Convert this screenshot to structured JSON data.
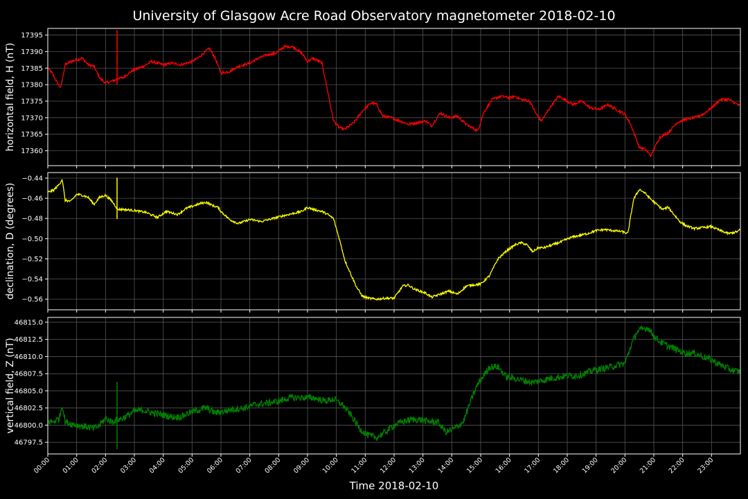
{
  "chart_data": {
    "type": "line",
    "title": "University of Glasgow Acre Road Observatory magnetometer 2018-02-10",
    "xlabel": "Time 2018-02-10",
    "x_tick_labels": [
      "00:00",
      "01:00",
      "02:00",
      "03:00",
      "04:00",
      "05:00",
      "06:00",
      "07:00",
      "08:00",
      "09:00",
      "10:00",
      "11:00",
      "12:00",
      "13:00",
      "14:00",
      "15:00",
      "16:00",
      "17:00",
      "18:00",
      "19:00",
      "20:00",
      "21:00",
      "22:00",
      "23:00"
    ],
    "xlim": [
      0,
      24
    ],
    "grid": true,
    "colors": {
      "background": "#000000",
      "frame": "#ffffff",
      "grid": "#555555"
    },
    "panels": [
      {
        "ylabel": "horizontal field, H (nT)",
        "color": "#ff0000",
        "ylim": [
          17355.5,
          17397
        ],
        "yticks": [
          17360,
          17365,
          17370,
          17375,
          17380,
          17385,
          17390,
          17395
        ],
        "ytick_labels": [
          "17360",
          "17365",
          "17370",
          "17375",
          "17380",
          "17385",
          "17390",
          "17395"
        ],
        "noise": 0.4,
        "series": {
          "name": "H",
          "x": [
            0,
            0.15,
            0.3,
            0.45,
            0.6,
            0.8,
            1,
            1.2,
            1.4,
            1.6,
            1.8,
            2,
            2.2,
            2.38,
            2.4,
            2.6,
            2.8,
            3,
            3.3,
            3.6,
            4,
            4.3,
            4.6,
            5,
            5.2,
            5.4,
            5.6,
            5.8,
            6,
            6.3,
            6.6,
            7,
            7.3,
            7.6,
            7.9,
            8.2,
            8.5,
            8.8,
            9,
            9.2,
            9.5,
            9.7,
            9.9,
            10.1,
            10.3,
            10.6,
            10.9,
            11.2,
            11.4,
            11.6,
            11.9,
            12.2,
            12.5,
            12.8,
            13.1,
            13.3,
            13.6,
            13.9,
            14.2,
            14.5,
            14.7,
            14.9,
            15.1,
            15.4,
            15.7,
            16,
            16.2,
            16.4,
            16.7,
            16.9,
            17.1,
            17.4,
            17.7,
            18,
            18.2,
            18.5,
            18.8,
            19.1,
            19.4,
            19.7,
            20,
            20.2,
            20.5,
            20.7,
            20.9,
            21.2,
            21.5,
            21.8,
            22.1,
            22.4,
            22.7,
            23,
            23.3,
            23.6,
            23.9,
            24
          ],
          "y": [
            17385,
            17383.5,
            17381,
            17379,
            17386,
            17387,
            17387.5,
            17388,
            17386,
            17385.5,
            17382,
            17380.5,
            17381,
            17381.5,
            17382,
            17382,
            17383.5,
            17384.5,
            17385.5,
            17387,
            17386,
            17386.5,
            17386,
            17387,
            17388,
            17389.5,
            17391,
            17388,
            17383.5,
            17384,
            17385.5,
            17386.5,
            17388,
            17389,
            17389.5,
            17391.5,
            17391.5,
            17389.5,
            17387,
            17388,
            17386.5,
            17378,
            17369,
            17367,
            17366.5,
            17368.5,
            17372,
            17374.5,
            17374,
            17370.5,
            17370,
            17369,
            17368,
            17368.5,
            17369,
            17367.5,
            17371.5,
            17370,
            17370.5,
            17368,
            17367,
            17366,
            17371.5,
            17375.5,
            17376.5,
            17376,
            17376.5,
            17375.5,
            17375,
            17371.5,
            17369,
            17373,
            17376.5,
            17375,
            17374,
            17375,
            17373,
            17372.5,
            17374,
            17372.5,
            17371,
            17368,
            17361,
            17360.5,
            17358.5,
            17364,
            17365.5,
            17368.5,
            17369.5,
            17370,
            17371,
            17373,
            17375.5,
            17375.5,
            17374,
            17373.5
          ]
        },
        "spike": {
          "x": 2.4,
          "y_min": 17380,
          "y_max": 17396.5
        }
      },
      {
        "ylabel": "declination, D (degrees)",
        "color": "#ffff00",
        "ylim": [
          -0.5705,
          -0.4345
        ],
        "yticks": [
          -0.56,
          -0.54,
          -0.52,
          -0.5,
          -0.48,
          -0.46,
          -0.44
        ],
        "ytick_labels": [
          "−0.56",
          "−0.54",
          "−0.52",
          "−0.50",
          "−0.48",
          "−0.46",
          "−0.44"
        ],
        "noise": 0.0011,
        "series": {
          "name": "D",
          "x": [
            0,
            0.2,
            0.4,
            0.5,
            0.6,
            0.8,
            1,
            1.2,
            1.4,
            1.6,
            1.8,
            2,
            2.2,
            2.38,
            2.4,
            2.6,
            3,
            3.4,
            3.8,
            4.1,
            4.5,
            4.8,
            5,
            5.3,
            5.5,
            5.7,
            5.9,
            6,
            6.3,
            6.6,
            7,
            7.4,
            7.8,
            8.2,
            8.5,
            8.8,
            9,
            9.2,
            9.5,
            9.7,
            9.9,
            10.1,
            10.3,
            10.5,
            10.7,
            10.9,
            11.1,
            11.4,
            11.7,
            12,
            12.3,
            12.5,
            12.7,
            12.9,
            13.1,
            13.3,
            13.6,
            13.9,
            14.2,
            14.5,
            14.7,
            15,
            15.3,
            15.6,
            15.9,
            16.2,
            16.4,
            16.6,
            16.8,
            17,
            17.2,
            17.5,
            17.8,
            18.1,
            18.4,
            18.7,
            19,
            19.3,
            19.6,
            19.9,
            20.1,
            20.3,
            20.5,
            20.7,
            20.9,
            21.1,
            21.3,
            21.5,
            21.7,
            21.9,
            22.1,
            22.4,
            22.7,
            23,
            23.3,
            23.6,
            23.9,
            24
          ],
          "y": [
            -0.454,
            -0.452,
            -0.446,
            -0.441,
            -0.462,
            -0.463,
            -0.456,
            -0.457,
            -0.459,
            -0.466,
            -0.459,
            -0.457,
            -0.462,
            -0.469,
            -0.471,
            -0.471,
            -0.472,
            -0.474,
            -0.479,
            -0.473,
            -0.476,
            -0.47,
            -0.468,
            -0.465,
            -0.464,
            -0.467,
            -0.469,
            -0.473,
            -0.481,
            -0.485,
            -0.481,
            -0.483,
            -0.48,
            -0.477,
            -0.475,
            -0.473,
            -0.469,
            -0.471,
            -0.473,
            -0.476,
            -0.48,
            -0.5,
            -0.522,
            -0.535,
            -0.548,
            -0.557,
            -0.559,
            -0.56,
            -0.559,
            -0.559,
            -0.547,
            -0.546,
            -0.55,
            -0.552,
            -0.554,
            -0.558,
            -0.555,
            -0.552,
            -0.555,
            -0.547,
            -0.546,
            -0.545,
            -0.537,
            -0.52,
            -0.512,
            -0.506,
            -0.504,
            -0.506,
            -0.513,
            -0.509,
            -0.509,
            -0.506,
            -0.503,
            -0.499,
            -0.497,
            -0.495,
            -0.492,
            -0.491,
            -0.492,
            -0.493,
            -0.495,
            -0.461,
            -0.451,
            -0.455,
            -0.461,
            -0.466,
            -0.471,
            -0.469,
            -0.476,
            -0.483,
            -0.487,
            -0.49,
            -0.489,
            -0.488,
            -0.492,
            -0.495,
            -0.493,
            -0.491
          ]
        },
        "spike": {
          "x": 2.4,
          "y_min": -0.4805,
          "y_max": -0.4395
        }
      },
      {
        "ylabel": "vertical field, Z (nT)",
        "color": "#008000",
        "ylim": [
          46795.8,
          46815.7
        ],
        "yticks": [
          46797.5,
          46800.0,
          46802.5,
          46805.0,
          46807.5,
          46810.0,
          46812.5,
          46815.0
        ],
        "ytick_labels": [
          "46797.5",
          "46800.0",
          "46802.5",
          "46805.0",
          "46807.5",
          "46810.0",
          "46812.5",
          "46815.0"
        ],
        "noise": 0.5,
        "series": {
          "name": "Z",
          "x": [
            0,
            0.2,
            0.4,
            0.5,
            0.6,
            0.8,
            1,
            1.3,
            1.6,
            1.8,
            2,
            2.2,
            2.4,
            2.6,
            2.8,
            3,
            3.3,
            3.6,
            4,
            4.3,
            4.6,
            4.9,
            5.2,
            5.5,
            5.8,
            6.1,
            6.4,
            6.8,
            7.2,
            7.6,
            8,
            8.4,
            8.8,
            9.2,
            9.6,
            9.9,
            10.2,
            10.5,
            10.8,
            11.1,
            11.4,
            11.7,
            12,
            12.3,
            12.6,
            12.9,
            13.2,
            13.5,
            13.8,
            14.1,
            14.4,
            14.7,
            14.9,
            15.1,
            15.3,
            15.6,
            15.9,
            16.2,
            16.5,
            16.8,
            17.1,
            17.4,
            17.7,
            18,
            18.3,
            18.6,
            18.9,
            19.2,
            19.5,
            19.8,
            20,
            20.2,
            20.4,
            20.6,
            20.8,
            21,
            21.2,
            21.5,
            21.8,
            22.1,
            22.4,
            22.7,
            23,
            23.3,
            23.6,
            23.9,
            24
          ],
          "y": [
            46800.5,
            46800.5,
            46801,
            46803,
            46800.5,
            46800.2,
            46800,
            46799.8,
            46799.5,
            46800,
            46801,
            46800.5,
            46800.8,
            46801,
            46801.5,
            46802,
            46802.2,
            46801.8,
            46801.5,
            46801.2,
            46801.2,
            46801.8,
            46802.2,
            46802.5,
            46801.8,
            46802,
            46802.3,
            46802.5,
            46803,
            46803.2,
            46803.5,
            46804,
            46804,
            46804,
            46803.5,
            46803.8,
            46803,
            46801.5,
            46799.5,
            46798.5,
            46798.2,
            46799,
            46800,
            46800.5,
            46800.8,
            46800.8,
            46800.5,
            46800.5,
            46799,
            46799.5,
            46800.5,
            46804,
            46806,
            46807.2,
            46808.5,
            46808.5,
            46807,
            46806.8,
            46806.5,
            46806.2,
            46806.5,
            46806.8,
            46807,
            46807.2,
            46807.2,
            46807.5,
            46808,
            46808.2,
            46808.5,
            46808.8,
            46809,
            46811.5,
            46813.5,
            46814,
            46814.2,
            46813,
            46812.2,
            46811.5,
            46811,
            46810.5,
            46810.5,
            46810,
            46809.5,
            46808.8,
            46808.2,
            46807.8,
            46807.8
          ]
        },
        "spike": {
          "x": 2.4,
          "y_min": 46796.5,
          "y_max": 46806.3
        }
      }
    ]
  }
}
